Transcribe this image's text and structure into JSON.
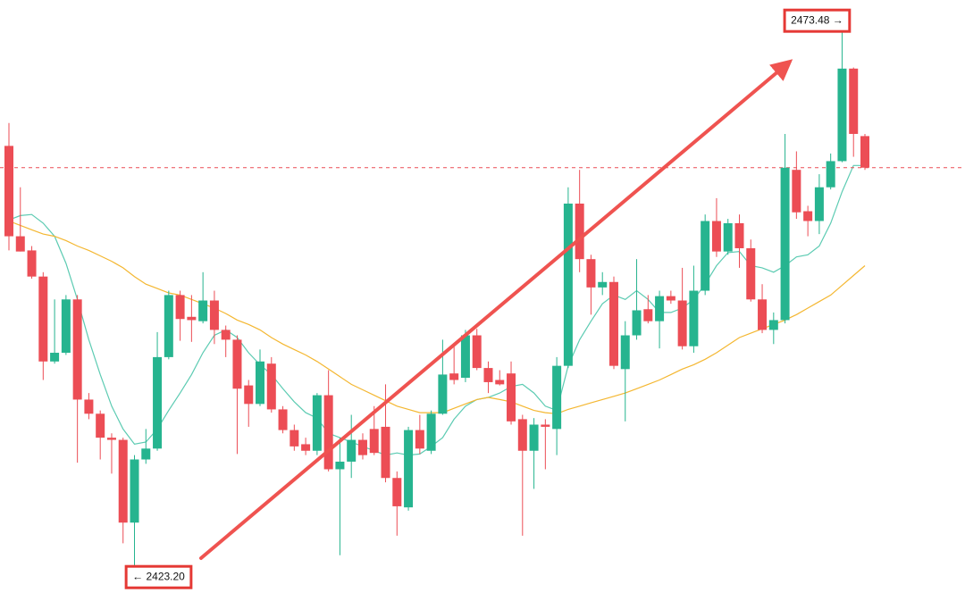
{
  "chart_data": {
    "type": "candlestick",
    "ylim": [
      2420.1,
      2475.3
    ],
    "up_color": "#26b48f",
    "down_color": "#ec4d55",
    "high_label": "2473.48 →",
    "low_label": "← 2423.20",
    "label_color": "#e53935",
    "last_price_line_color": "#ec4d55",
    "open": [
      2461.9,
      2453.6,
      2452.3,
      2449.9,
      2442.1,
      2442.9,
      2447.8,
      2438.6,
      2437.3,
      2435.1,
      2434.9,
      2427.3,
      2433.1,
      2434.1,
      2442.5,
      2448.2,
      2446.2,
      2445.8,
      2447.7,
      2445.0,
      2444.1,
      2439.9,
      2438.2,
      2441.9,
      2437.7,
      2435.8,
      2434.5,
      2433.9,
      2439.0,
      2432.2,
      2432.9,
      2434.9,
      2435.9,
      2436.1,
      2431.4,
      2428.7,
      2435.8,
      2433.9,
      2437.3,
      2441.0,
      2440.6,
      2444.5,
      2441.5,
      2440.4,
      2441.0,
      2436.8,
      2433.9,
      2436.3,
      2435.9,
      2441.7,
      2456.6,
      2451.5,
      2448.9,
      2449.4,
      2441.4,
      2444.5,
      2446.9,
      2445.8,
      2448.1,
      2447.7,
      2443.5,
      2448.6,
      2455.0,
      2452.2,
      2454.8,
      2452.5,
      2447.8,
      2445.0,
      2445.9,
      2459.7,
      2455.9,
      2455.0,
      2458.1,
      2460.5,
      2469.0,
      2462.8
    ],
    "high": [
      2464.0,
      2458.1,
      2452.7,
      2450.3,
      2447.8,
      2448.2,
      2448.2,
      2439.2,
      2437.6,
      2435.5,
      2435.1,
      2433.5,
      2435.9,
      2444.8,
      2448.6,
      2448.6,
      2448.2,
      2450.3,
      2448.6,
      2445.4,
      2444.5,
      2440.4,
      2443.2,
      2442.5,
      2438.0,
      2436.3,
      2435.1,
      2439.2,
      2441.3,
      2435.1,
      2437.2,
      2435.5,
      2438.0,
      2440.0,
      2432.0,
      2436.1,
      2437.2,
      2437.6,
      2444.1,
      2443.5,
      2445.0,
      2445.1,
      2442.1,
      2441.3,
      2442.1,
      2437.2,
      2436.9,
      2436.8,
      2442.5,
      2458.1,
      2459.7,
      2451.9,
      2450.3,
      2449.9,
      2445.8,
      2451.5,
      2448.2,
      2448.6,
      2448.6,
      2450.7,
      2450.9,
      2455.6,
      2457.1,
      2455.2,
      2455.6,
      2453.3,
      2449.2,
      2446.6,
      2463.0,
      2461.4,
      2456.4,
      2459.3,
      2461.2,
      2473.48,
      2469.1,
      2463.0
    ],
    "low": [
      2452.3,
      2452.2,
      2449.7,
      2440.4,
      2441.9,
      2442.7,
      2432.8,
      2436.8,
      2433.1,
      2431.8,
      2425.4,
      2423.2,
      2432.7,
      2433.9,
      2442.3,
      2444.0,
      2443.9,
      2445.6,
      2443.7,
      2442.5,
      2433.6,
      2436.1,
      2438.0,
      2437.4,
      2435.5,
      2433.9,
      2433.5,
      2433.5,
      2432.0,
      2424.3,
      2431.4,
      2433.1,
      2433.5,
      2431.0,
      2426.1,
      2428.4,
      2433.6,
      2433.6,
      2437.2,
      2440.0,
      2440.2,
      2441.3,
      2439.2,
      2439.9,
      2436.3,
      2426.1,
      2430.4,
      2432.2,
      2433.5,
      2441.5,
      2450.3,
      2446.4,
      2448.2,
      2441.4,
      2436.6,
      2444.1,
      2445.6,
      2443.3,
      2447.4,
      2443.2,
      2442.9,
      2448.2,
      2451.7,
      2451.9,
      2450.7,
      2447.6,
      2444.7,
      2443.7,
      2445.6,
      2455.2,
      2453.6,
      2453.8,
      2457.9,
      2460.4,
      2460.9,
      2459.7
    ],
    "close": [
      2453.6,
      2452.2,
      2449.9,
      2442.1,
      2442.9,
      2447.8,
      2438.6,
      2437.3,
      2435.1,
      2434.9,
      2427.3,
      2433.1,
      2434.1,
      2442.5,
      2448.2,
      2446.0,
      2445.9,
      2447.7,
      2445.0,
      2444.1,
      2439.6,
      2438.2,
      2442.1,
      2437.7,
      2435.8,
      2434.3,
      2433.9,
      2439.0,
      2432.2,
      2432.9,
      2434.9,
      2433.5,
      2433.7,
      2431.4,
      2428.8,
      2435.8,
      2434.1,
      2437.3,
      2440.9,
      2440.4,
      2444.5,
      2441.5,
      2440.2,
      2440.0,
      2436.6,
      2433.9,
      2436.3,
      2436.1,
      2441.7,
      2456.6,
      2451.5,
      2448.9,
      2449.4,
      2441.7,
      2444.5,
      2446.8,
      2445.8,
      2448.1,
      2447.7,
      2443.5,
      2448.6,
      2455.0,
      2452.2,
      2454.8,
      2452.5,
      2447.8,
      2445.0,
      2445.9,
      2459.9,
      2455.8,
      2455.0,
      2458.1,
      2460.5,
      2469.0,
      2463.0,
      2459.9
    ],
    "series": [
      {
        "color": "#5ccbb2",
        "values": [
          2455.1,
          2455.5,
          2455.6,
          2454.8,
          2453.6,
          2451.1,
          2447.8,
          2444.1,
          2440.9,
          2438.0,
          2435.9,
          2434.5,
          2434.7,
          2435.9,
          2437.6,
          2439.2,
          2440.9,
          2442.9,
          2444.5,
          2445.0,
          2444.3,
          2442.9,
          2441.8,
          2440.9,
          2439.6,
          2438.4,
          2437.4,
          2436.9,
          2435.5,
          2435.1,
          2434.7,
          2434.3,
          2433.9,
          2433.5,
          2433.7,
          2433.5,
          2433.6,
          2434.3,
          2435.1,
          2436.8,
          2438.0,
          2438.6,
          2438.8,
          2439.2,
          2439.8,
          2440.0,
          2439.2,
          2438.0,
          2437.6,
          2441.7,
          2444.1,
          2445.8,
          2447.4,
          2448.2,
          2447.8,
          2448.6,
          2447.8,
          2446.6,
          2446.6,
          2447.0,
          2447.8,
          2449.2,
          2450.9,
          2452.1,
          2452.2,
          2450.9,
          2450.7,
          2450.3,
          2450.9,
          2451.7,
          2451.9,
          2452.7,
          2454.8,
          2457.7,
          2460.1,
          2460.1
        ]
      },
      {
        "color": "#f4b731",
        "values": [
          2455.0,
          2454.6,
          2454.2,
          2453.8,
          2453.6,
          2453.2,
          2452.7,
          2452.3,
          2451.8,
          2451.3,
          2450.7,
          2449.9,
          2449.2,
          2448.8,
          2448.4,
          2448.2,
          2447.8,
          2447.4,
          2447.0,
          2446.5,
          2445.9,
          2445.5,
          2445.0,
          2444.3,
          2443.7,
          2443.2,
          2442.7,
          2442.1,
          2441.4,
          2440.7,
          2440.0,
          2439.5,
          2439.0,
          2438.5,
          2438.0,
          2437.7,
          2437.4,
          2437.4,
          2437.4,
          2437.8,
          2438.2,
          2438.6,
          2438.8,
          2438.6,
          2438.4,
          2438.0,
          2437.6,
          2437.4,
          2437.3,
          2437.7,
          2438.0,
          2438.3,
          2438.6,
          2438.9,
          2439.2,
          2439.6,
          2440.0,
          2440.4,
          2440.9,
          2441.4,
          2441.8,
          2442.3,
          2442.9,
          2443.6,
          2444.3,
          2444.7,
          2445.1,
          2445.5,
          2445.9,
          2446.4,
          2447.0,
          2447.6,
          2448.2,
          2449.1,
          2450.0,
          2450.9
        ]
      }
    ]
  }
}
